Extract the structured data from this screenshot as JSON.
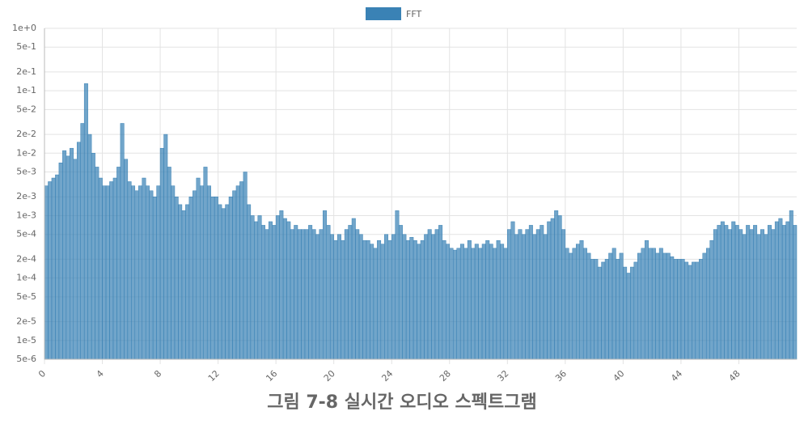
{
  "chart_data": {
    "type": "bar",
    "log_y": true,
    "grid": true,
    "legend": "top",
    "xlim": [
      0,
      52
    ],
    "xticks": [
      0,
      4,
      8,
      12,
      16,
      20,
      24,
      28,
      32,
      36,
      40,
      44,
      48
    ],
    "ylim": [
      5e-06,
      1
    ],
    "yticks": [
      {
        "value": 1,
        "label": "1e+0"
      },
      {
        "value": 0.5,
        "label": "5e-1"
      },
      {
        "value": 0.2,
        "label": "2e-1"
      },
      {
        "value": 0.1,
        "label": "1e-1"
      },
      {
        "value": 0.05,
        "label": "5e-2"
      },
      {
        "value": 0.02,
        "label": "2e-2"
      },
      {
        "value": 0.01,
        "label": "1e-2"
      },
      {
        "value": 0.005,
        "label": "5e-3"
      },
      {
        "value": 0.002,
        "label": "2e-3"
      },
      {
        "value": 0.001,
        "label": "1e-3"
      },
      {
        "value": 0.0005,
        "label": "5e-4"
      },
      {
        "value": 0.0002,
        "label": "2e-4"
      },
      {
        "value": 0.0001,
        "label": "1e-4"
      },
      {
        "value": 5e-05,
        "label": "5e-5"
      },
      {
        "value": 2e-05,
        "label": "2e-5"
      },
      {
        "value": 1e-05,
        "label": "1e-5"
      },
      {
        "value": 5e-06,
        "label": "5e-6"
      }
    ],
    "x": [
      0,
      0.25,
      0.5,
      0.75,
      1,
      1.25,
      1.5,
      1.75,
      2,
      2.25,
      2.5,
      2.75,
      3,
      3.25,
      3.5,
      3.75,
      4,
      4.25,
      4.5,
      4.75,
      5,
      5.25,
      5.5,
      5.75,
      6,
      6.25,
      6.5,
      6.75,
      7,
      7.25,
      7.5,
      7.75,
      8,
      8.25,
      8.5,
      8.75,
      9,
      9.25,
      9.5,
      9.75,
      10,
      10.25,
      10.5,
      10.75,
      11,
      11.25,
      11.5,
      11.75,
      12,
      12.25,
      12.5,
      12.75,
      13,
      13.25,
      13.5,
      13.75,
      14,
      14.25,
      14.5,
      14.75,
      15,
      15.25,
      15.5,
      15.75,
      16,
      16.25,
      16.5,
      16.75,
      17,
      17.25,
      17.5,
      17.75,
      18,
      18.25,
      18.5,
      18.75,
      19,
      19.25,
      19.5,
      19.75,
      20,
      20.25,
      20.5,
      20.75,
      21,
      21.25,
      21.5,
      21.75,
      22,
      22.25,
      22.5,
      22.75,
      23,
      23.25,
      23.5,
      23.75,
      24,
      24.25,
      24.5,
      24.75,
      25,
      25.25,
      25.5,
      25.75,
      26,
      26.25,
      26.5,
      26.75,
      27,
      27.25,
      27.5,
      27.75,
      28,
      28.25,
      28.5,
      28.75,
      29,
      29.25,
      29.5,
      29.75,
      30,
      30.25,
      30.5,
      30.75,
      31,
      31.25,
      31.5,
      31.75,
      32,
      32.25,
      32.5,
      32.75,
      33,
      33.25,
      33.5,
      33.75,
      34,
      34.25,
      34.5,
      34.75,
      35,
      35.25,
      35.5,
      35.75,
      36,
      36.25,
      36.5,
      36.75,
      37,
      37.25,
      37.5,
      37.75,
      38,
      38.25,
      38.5,
      38.75,
      39,
      39.25,
      39.5,
      39.75,
      40,
      40.25,
      40.5,
      40.75,
      41,
      41.25,
      41.5,
      41.75,
      42,
      42.25,
      42.5,
      42.75,
      43,
      43.25,
      43.5,
      43.75,
      44,
      44.25,
      44.5,
      44.75,
      45,
      45.25,
      45.5,
      45.75,
      46,
      46.25,
      46.5,
      46.75,
      47,
      47.25,
      47.5,
      47.75,
      48,
      48.25,
      48.5,
      48.75,
      49,
      49.25,
      49.5,
      49.75,
      50,
      50.25,
      50.5,
      50.75,
      51,
      51.25,
      51.5,
      51.75
    ],
    "series": [
      {
        "name": "FFT",
        "color": "#3a82b5",
        "values": [
          0.003,
          0.0035,
          0.004,
          0.0045,
          0.007,
          0.011,
          0.009,
          0.012,
          0.008,
          0.015,
          0.03,
          0.13,
          0.02,
          0.01,
          0.006,
          0.004,
          0.003,
          0.003,
          0.0035,
          0.004,
          0.006,
          0.03,
          0.008,
          0.0035,
          0.003,
          0.0025,
          0.003,
          0.004,
          0.003,
          0.0025,
          0.002,
          0.003,
          0.012,
          0.02,
          0.006,
          0.003,
          0.002,
          0.0015,
          0.0012,
          0.0015,
          0.002,
          0.0025,
          0.004,
          0.003,
          0.006,
          0.003,
          0.002,
          0.002,
          0.0015,
          0.0013,
          0.0015,
          0.002,
          0.0025,
          0.003,
          0.0035,
          0.005,
          0.0015,
          0.001,
          0.0008,
          0.001,
          0.0007,
          0.0006,
          0.0008,
          0.0007,
          0.001,
          0.0012,
          0.0009,
          0.0008,
          0.0006,
          0.0007,
          0.0006,
          0.0006,
          0.0006,
          0.0007,
          0.0006,
          0.0005,
          0.0006,
          0.0012,
          0.0007,
          0.0005,
          0.0004,
          0.0005,
          0.0004,
          0.0006,
          0.0007,
          0.0009,
          0.0006,
          0.0005,
          0.0004,
          0.0004,
          0.00035,
          0.0003,
          0.0004,
          0.00035,
          0.0005,
          0.0004,
          0.0005,
          0.0012,
          0.0007,
          0.0005,
          0.0004,
          0.00045,
          0.0004,
          0.00035,
          0.0004,
          0.0005,
          0.0006,
          0.0005,
          0.0006,
          0.0007,
          0.0004,
          0.00035,
          0.0003,
          0.00028,
          0.0003,
          0.00035,
          0.0003,
          0.0004,
          0.0003,
          0.00035,
          0.0003,
          0.00035,
          0.0004,
          0.00035,
          0.0003,
          0.0004,
          0.00035,
          0.0003,
          0.0006,
          0.0008,
          0.0005,
          0.0006,
          0.0005,
          0.0006,
          0.0007,
          0.0005,
          0.0006,
          0.0007,
          0.0005,
          0.0008,
          0.0009,
          0.0012,
          0.001,
          0.0006,
          0.0003,
          0.00025,
          0.0003,
          0.00035,
          0.0004,
          0.0003,
          0.00025,
          0.0002,
          0.0002,
          0.00015,
          0.00018,
          0.0002,
          0.00025,
          0.0003,
          0.0002,
          0.00025,
          0.00015,
          0.00012,
          0.00015,
          0.00018,
          0.00025,
          0.0003,
          0.0004,
          0.0003,
          0.0003,
          0.00025,
          0.0003,
          0.00025,
          0.00025,
          0.00022,
          0.0002,
          0.0002,
          0.0002,
          0.00018,
          0.00016,
          0.00018,
          0.00018,
          0.0002,
          0.00025,
          0.0003,
          0.0004,
          0.0006,
          0.0007,
          0.0008,
          0.0007,
          0.0006,
          0.0008,
          0.0007,
          0.0006,
          0.0005,
          0.0007,
          0.0006,
          0.0007,
          0.0005,
          0.0006,
          0.0005,
          0.0007,
          0.0006,
          0.0008,
          0.0009,
          0.0007,
          0.0008,
          0.0012,
          0.0007
        ]
      }
    ]
  },
  "caption": "그림 7-8  실시간 오디오 스펙트그램"
}
